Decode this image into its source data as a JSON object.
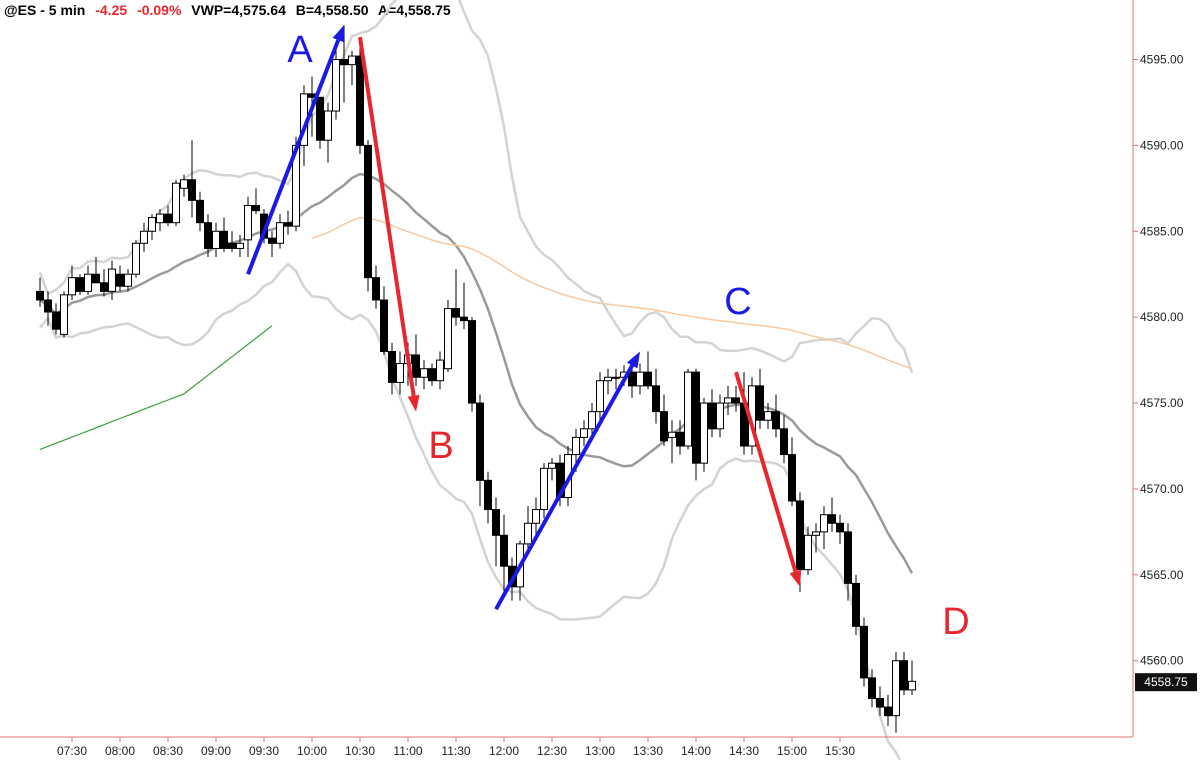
{
  "header": {
    "symbol": "@ES - 5 min",
    "change": "-4.25",
    "change_pct": "-0.09%",
    "vwap": "VWP=4,575.64",
    "bid": "B=4,558.50",
    "ask": "A=4,558.75"
  },
  "colors": {
    "up_candle": "#ffffff",
    "down_candle": "#000000",
    "mid_band": "#9a9a9a",
    "outer_band": "#d3d3d3",
    "vwap_line": "#f7c9a0",
    "green_line": "#3aa03a",
    "up_arrow": "#1a1ae6",
    "down_arrow": "#e8262e",
    "axis_line": "#e07070",
    "price_box": "#111111"
  },
  "chart_data": {
    "type": "candlestick",
    "x_time_ticks": [
      "07:30",
      "08:00",
      "08:30",
      "09:00",
      "09:30",
      "10:00",
      "10:30",
      "11:00",
      "11:30",
      "12:00",
      "12:30",
      "13:00",
      "13:30",
      "14:00",
      "14:30",
      "15:00",
      "15:30"
    ],
    "y_ticks": [
      "4595.00",
      "4590.00",
      "4585.00",
      "4580.00",
      "4575.00",
      "4570.00",
      "4565.00",
      "4560.00"
    ],
    "ylim": [
      4555.5,
      4597.3
    ],
    "current_price": "4558.75",
    "ohlc": [
      [
        "07:10",
        4581.5,
        4582.3,
        4580.6,
        4581.0
      ],
      [
        "07:15",
        4581.0,
        4581.5,
        4579.5,
        4580.3
      ],
      [
        "07:20",
        4580.3,
        4580.8,
        4579.0,
        4579.3
      ],
      [
        "07:25",
        4579.0,
        4581.5,
        4578.8,
        4581.3
      ],
      [
        "07:30",
        4581.3,
        4583.0,
        4581.0,
        4582.3
      ],
      [
        "07:35",
        4582.3,
        4582.5,
        4581.3,
        4581.5
      ],
      [
        "07:40",
        4581.5,
        4583.0,
        4581.3,
        4582.5
      ],
      [
        "07:45",
        4582.5,
        4583.5,
        4582.0,
        4582.0
      ],
      [
        "07:50",
        4582.0,
        4582.8,
        4581.2,
        4581.5
      ],
      [
        "07:55",
        4581.5,
        4583.3,
        4581.0,
        4582.8
      ],
      [
        "08:00",
        4582.5,
        4583.0,
        4581.5,
        4581.8
      ],
      [
        "08:05",
        4581.8,
        4582.8,
        4581.5,
        4582.5
      ],
      [
        "08:10",
        4582.5,
        4584.5,
        4582.3,
        4584.3
      ],
      [
        "08:15",
        4584.3,
        4585.5,
        4583.8,
        4585.0
      ],
      [
        "08:20",
        4585.0,
        4586.0,
        4584.5,
        4585.8
      ],
      [
        "08:25",
        4585.5,
        4586.3,
        4585.0,
        4586.0
      ],
      [
        "08:30",
        4586.0,
        4586.5,
        4585.3,
        4585.5
      ],
      [
        "08:35",
        4585.5,
        4588.0,
        4585.3,
        4587.8
      ],
      [
        "08:40",
        4587.5,
        4588.3,
        4587.0,
        4588.0
      ],
      [
        "08:45",
        4588.0,
        4590.3,
        4585.8,
        4586.8
      ],
      [
        "08:50",
        4586.8,
        4587.3,
        4585.0,
        4585.5
      ],
      [
        "08:55",
        4585.5,
        4586.0,
        4583.5,
        4584.0
      ],
      [
        "09:00",
        4584.0,
        4585.5,
        4583.5,
        4585.0
      ],
      [
        "09:05",
        4585.0,
        4585.8,
        4583.8,
        4584.0
      ],
      [
        "09:10",
        4584.3,
        4585.0,
        4583.8,
        4584.0
      ],
      [
        "09:15",
        4584.0,
        4584.8,
        4583.5,
        4584.3
      ],
      [
        "09:20",
        4584.5,
        4587.0,
        4583.5,
        4586.5
      ],
      [
        "09:25",
        4586.5,
        4587.5,
        4586.0,
        4586.2
      ],
      [
        "09:30",
        4586.0,
        4586.3,
        4584.3,
        4584.6
      ],
      [
        "09:35",
        4584.6,
        4585.0,
        4583.5,
        4584.3
      ],
      [
        "09:40",
        4584.3,
        4586.0,
        4584.0,
        4585.5
      ],
      [
        "09:45",
        4585.5,
        4586.2,
        4584.8,
        4585.3
      ],
      [
        "09:50",
        4585.3,
        4590.5,
        4585.0,
        4590.0
      ],
      [
        "09:55",
        4590.0,
        4593.5,
        4588.8,
        4593.0
      ],
      [
        "10:00",
        4593.0,
        4594.0,
        4590.5,
        4592.8
      ],
      [
        "10:05",
        4592.8,
        4592.8,
        4589.8,
        4590.3
      ],
      [
        "10:10",
        4590.3,
        4592.5,
        4589.0,
        4592.0
      ],
      [
        "10:15",
        4592.0,
        4595.5,
        4591.5,
        4595.0
      ],
      [
        "10:20",
        4595.0,
        4597.0,
        4592.5,
        4594.7
      ],
      [
        "10:25",
        4594.7,
        4595.5,
        4593.5,
        4595.2
      ],
      [
        "10:30",
        4595.2,
        4596.3,
        4589.5,
        4590.0
      ],
      [
        "10:35",
        4590.0,
        4590.3,
        4581.5,
        4582.3
      ],
      [
        "10:40",
        4582.3,
        4583.0,
        4580.5,
        4581.0
      ],
      [
        "10:45",
        4581.0,
        4581.8,
        4577.8,
        4578.0
      ],
      [
        "10:50",
        4578.0,
        4578.5,
        4575.5,
        4576.2
      ],
      [
        "10:55",
        4576.2,
        4578.0,
        4575.5,
        4577.3
      ],
      [
        "11:00",
        4577.3,
        4578.5,
        4576.0,
        4577.8
      ],
      [
        "11:05",
        4577.8,
        4579.0,
        4576.0,
        4576.5
      ],
      [
        "11:10",
        4576.5,
        4577.5,
        4575.8,
        4577.0
      ],
      [
        "11:15",
        4577.0,
        4577.3,
        4576.0,
        4576.3
      ],
      [
        "11:20",
        4576.3,
        4578.0,
        4575.8,
        4577.5
      ],
      [
        "11:25",
        4577.0,
        4581.0,
        4576.8,
        4580.5
      ],
      [
        "11:30",
        4580.5,
        4582.8,
        4579.5,
        4580.0
      ],
      [
        "11:35",
        4580.0,
        4582.0,
        4579.3,
        4579.8
      ],
      [
        "11:40",
        4579.8,
        4580.0,
        4574.5,
        4575.0
      ],
      [
        "11:45",
        4575.0,
        4575.5,
        4569.0,
        4570.5
      ],
      [
        "11:50",
        4570.5,
        4571.0,
        4568.0,
        4568.8
      ],
      [
        "11:55",
        4568.8,
        4569.5,
        4565.5,
        4567.3
      ],
      [
        "12:00",
        4567.3,
        4568.5,
        4564.0,
        4565.5
      ],
      [
        "12:05",
        4565.5,
        4566.0,
        4563.5,
        4564.3
      ],
      [
        "12:10",
        4564.3,
        4567.0,
        4563.5,
        4566.8
      ],
      [
        "12:15",
        4566.8,
        4569.0,
        4566.2,
        4568.0
      ],
      [
        "12:20",
        4568.0,
        4569.5,
        4567.0,
        4568.8
      ],
      [
        "12:25",
        4568.8,
        4571.5,
        4568.3,
        4571.2
      ],
      [
        "12:30",
        4571.2,
        4571.8,
        4570.5,
        4571.5
      ],
      [
        "12:35",
        4571.5,
        4572.0,
        4569.0,
        4569.5
      ],
      [
        "12:40",
        4569.5,
        4572.5,
        4569.0,
        4572.0
      ],
      [
        "12:45",
        4572.0,
        4573.5,
        4571.0,
        4573.0
      ],
      [
        "12:50",
        4573.0,
        4574.0,
        4572.5,
        4573.5
      ],
      [
        "12:55",
        4573.5,
        4575.0,
        4573.0,
        4574.5
      ],
      [
        "13:00",
        4574.5,
        4576.8,
        4574.0,
        4576.3
      ],
      [
        "13:05",
        4576.3,
        4577.0,
        4575.5,
        4576.5
      ],
      [
        "13:10",
        4576.5,
        4577.0,
        4575.8,
        4576.5
      ],
      [
        "13:15",
        4576.5,
        4577.2,
        4576.0,
        4576.8
      ],
      [
        "13:20",
        4576.8,
        4577.3,
        4575.3,
        4576.0
      ],
      [
        "13:25",
        4576.0,
        4577.3,
        4575.5,
        4576.8
      ],
      [
        "13:30",
        4576.8,
        4578.0,
        4575.8,
        4576.0
      ],
      [
        "13:35",
        4576.0,
        4577.0,
        4573.8,
        4574.5
      ],
      [
        "13:40",
        4574.5,
        4575.5,
        4572.5,
        4572.8
      ],
      [
        "13:45",
        4573.0,
        4574.0,
        4571.5,
        4573.3
      ],
      [
        "13:50",
        4573.3,
        4574.0,
        4572.0,
        4572.5
      ],
      [
        "13:55",
        4572.5,
        4577.0,
        4572.3,
        4576.8
      ],
      [
        "14:00",
        4576.8,
        4577.0,
        4570.5,
        4571.5
      ],
      [
        "14:05",
        4571.5,
        4575.3,
        4571.0,
        4575.0
      ],
      [
        "14:10",
        4575.0,
        4575.8,
        4573.0,
        4573.5
      ],
      [
        "14:15",
        4573.5,
        4575.5,
        4573.0,
        4575.0
      ],
      [
        "14:20",
        4575.0,
        4576.0,
        4574.3,
        4575.3
      ],
      [
        "14:25",
        4575.3,
        4576.0,
        4574.5,
        4575.0
      ],
      [
        "14:30",
        4575.0,
        4576.8,
        4572.0,
        4572.5
      ],
      [
        "14:35",
        4572.5,
        4576.5,
        4572.0,
        4576.0
      ],
      [
        "14:40",
        4576.0,
        4577.0,
        4573.5,
        4574.0
      ],
      [
        "14:45",
        4574.0,
        4575.0,
        4573.5,
        4574.5
      ],
      [
        "14:50",
        4574.5,
        4575.5,
        4573.0,
        4573.5
      ],
      [
        "14:55",
        4573.5,
        4574.3,
        4571.5,
        4572.0
      ],
      [
        "15:00",
        4572.0,
        4573.0,
        4569.0,
        4569.3
      ],
      [
        "15:05",
        4569.3,
        4569.8,
        4564.0,
        4565.3
      ],
      [
        "15:10",
        4565.3,
        4567.8,
        4565.0,
        4567.3
      ],
      [
        "15:15",
        4567.3,
        4568.0,
        4566.3,
        4567.5
      ],
      [
        "15:20",
        4567.5,
        4569.0,
        4566.5,
        4568.5
      ],
      [
        "15:25",
        4568.5,
        4569.5,
        4567.5,
        4568.0
      ],
      [
        "15:30",
        4568.0,
        4568.5,
        4566.8,
        4567.5
      ],
      [
        "15:35",
        4567.5,
        4568.0,
        4563.5,
        4564.5
      ],
      [
        "15:40",
        4564.5,
        4565.0,
        4561.5,
        4562.0
      ],
      [
        "15:45",
        4562.0,
        4562.5,
        4558.5,
        4559.0
      ],
      [
        "15:50",
        4559.0,
        4559.5,
        4557.3,
        4557.8
      ],
      [
        "15:55",
        4557.8,
        4558.5,
        4556.8,
        4557.3
      ],
      [
        "16:00",
        4557.3,
        4558.0,
        4556.2,
        4556.8
      ],
      [
        "16:05",
        4556.8,
        4560.5,
        4555.8,
        4560.0
      ],
      [
        "16:10",
        4560.0,
        4560.5,
        4558.0,
        4558.3
      ],
      [
        "16:15",
        4558.3,
        4560.0,
        4558.0,
        4558.8
      ]
    ],
    "arrows": [
      {
        "label": "A",
        "direction": "up",
        "from": [
          "09:20",
          4582.5
        ],
        "to": [
          "10:20",
          4597.0
        ]
      },
      {
        "label": "B",
        "direction": "down",
        "from": [
          "10:30",
          4596.3
        ],
        "to": [
          "11:05",
          4574.5
        ]
      },
      {
        "label": "C",
        "direction": "up",
        "from": [
          "11:55",
          4563.0
        ],
        "to": [
          "13:25",
          4578.0
        ]
      },
      {
        "label": "D",
        "direction": "down",
        "from": [
          "14:25",
          4576.8
        ],
        "to": [
          "15:05",
          4564.3
        ]
      }
    ]
  }
}
